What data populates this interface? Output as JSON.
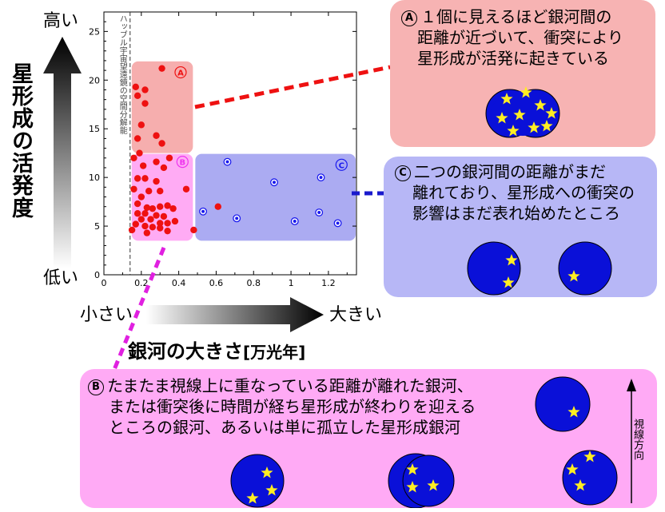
{
  "y_axis": {
    "title": "星形成の活発度",
    "high": "高い",
    "low": "低い"
  },
  "x_axis": {
    "title": "銀河の大きさ",
    "unit": "[万光年]",
    "small": "小さい",
    "large": "大きい"
  },
  "chart_data": {
    "type": "scatter",
    "xlim": [
      0,
      1.35
    ],
    "ylim": [
      0,
      27
    ],
    "x_ticks": [
      "0",
      "0.2",
      "0.4",
      "0.6",
      "0.8",
      "1",
      "1.2"
    ],
    "y_ticks": [
      "0",
      "5",
      "10",
      "15",
      "20",
      "25"
    ],
    "limit_line": {
      "x": 0.14,
      "label": "ハッブル宇宙望遠鏡の空間分解能"
    },
    "regions": [
      {
        "id": "A",
        "x": [
          0.14,
          0.48
        ],
        "y": [
          12.5,
          22
        ],
        "color": "#f4a0a0"
      },
      {
        "id": "B",
        "x": [
          0.14,
          0.48
        ],
        "y": [
          3.5,
          12.5
        ],
        "color": "#ff9cf2"
      },
      {
        "id": "C",
        "x": [
          0.48,
          1.35
        ],
        "y": [
          3.5,
          12.5
        ],
        "color": "#9c9cf0"
      }
    ],
    "series": [
      {
        "marker": "filled-red",
        "color": "#ee1111",
        "points": [
          [
            0.31,
            21.2
          ],
          [
            0.17,
            19.3
          ],
          [
            0.22,
            19.0
          ],
          [
            0.18,
            18.4
          ],
          [
            0.22,
            17.6
          ],
          [
            0.2,
            15.4
          ],
          [
            0.18,
            14.0
          ],
          [
            0.28,
            14.3
          ],
          [
            0.31,
            13.5
          ],
          [
            0.19,
            12.5
          ],
          [
            0.16,
            12.0
          ],
          [
            0.35,
            12.0
          ],
          [
            0.28,
            11.6
          ],
          [
            0.21,
            11.2
          ],
          [
            0.32,
            11.0
          ],
          [
            0.18,
            9.9
          ],
          [
            0.22,
            9.9
          ],
          [
            0.28,
            9.6
          ],
          [
            0.16,
            8.8
          ],
          [
            0.24,
            8.6
          ],
          [
            0.3,
            8.6
          ],
          [
            0.44,
            8.8
          ],
          [
            0.2,
            8.0
          ],
          [
            0.18,
            7.3
          ],
          [
            0.23,
            6.9
          ],
          [
            0.26,
            6.8
          ],
          [
            0.3,
            7.0
          ],
          [
            0.34,
            7.1
          ],
          [
            0.37,
            6.8
          ],
          [
            0.18,
            6.3
          ],
          [
            0.22,
            6.3
          ],
          [
            0.28,
            6.1
          ],
          [
            0.32,
            6.0
          ],
          [
            0.2,
            5.7
          ],
          [
            0.25,
            5.7
          ],
          [
            0.3,
            5.3
          ],
          [
            0.34,
            5.3
          ],
          [
            0.17,
            5.2
          ],
          [
            0.22,
            5.0
          ],
          [
            0.38,
            5.5
          ],
          [
            0.26,
            4.9
          ],
          [
            0.3,
            4.8
          ],
          [
            0.15,
            4.6
          ],
          [
            0.34,
            4.5
          ],
          [
            0.48,
            4.6
          ],
          [
            0.23,
            4.3
          ],
          [
            0.61,
            7.0
          ]
        ]
      },
      {
        "marker": "dotted-blue",
        "color": "#1a1aee",
        "points": [
          [
            0.66,
            11.6
          ],
          [
            0.91,
            9.5
          ],
          [
            1.16,
            10.0
          ],
          [
            0.53,
            6.5
          ],
          [
            0.71,
            5.8
          ],
          [
            1.15,
            6.4
          ],
          [
            1.02,
            5.5
          ],
          [
            1.25,
            5.3
          ]
        ]
      }
    ]
  },
  "panels": {
    "a": {
      "letter": "A",
      "lines": [
        "１個に見えるほど銀河間の",
        "距離が近づいて、衝突により",
        "星形成が活発に起きている"
      ]
    },
    "b": {
      "letter": "B",
      "lines": [
        "たまたま視線上に重なっている距離が離れた銀河、",
        "または衝突後に時間が経ち星形成が終わりを迎える",
        "ところの銀河、あるいは単に孤立した星形成銀河"
      ],
      "line_of_sight": "視線方向"
    },
    "c": {
      "letter": "C",
      "lines": [
        "二つの銀河間の距離がまだ",
        "離れており、星形成への衝突の",
        "影響はまだ表れ始めたところ"
      ]
    }
  },
  "colors": {
    "red": "#ee1111",
    "blue": "#1a1aee",
    "galaxy": "#0a10d8",
    "star": "#ffee22",
    "panel_a": "#f7b3b3",
    "panel_b": "#ffaaf5",
    "panel_c": "#b7b7f6"
  }
}
